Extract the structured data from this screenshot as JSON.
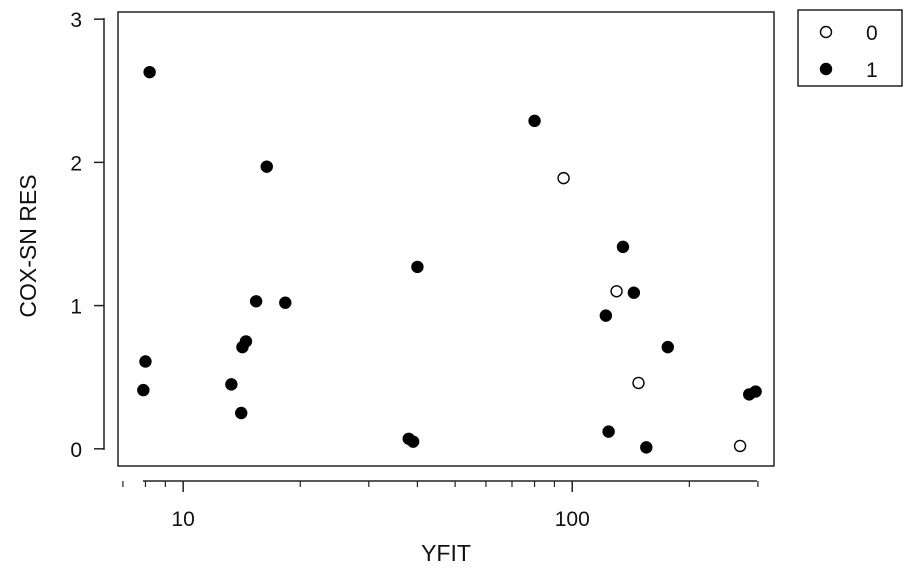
{
  "chart_data": {
    "type": "scatter",
    "xlabel": "YFIT",
    "ylabel": "COX-SN RES",
    "x_scale": "log",
    "xlim": [
      6.8,
      330
    ],
    "ylim": [
      -0.12,
      3.05
    ],
    "x_major_ticks": [
      10,
      100
    ],
    "x_major_tick_labels": [
      "10",
      "100"
    ],
    "x_minor_ticks": [
      7,
      8,
      9,
      20,
      30,
      40,
      50,
      60,
      70,
      80,
      90,
      200,
      300
    ],
    "y_ticks": [
      0,
      1,
      2,
      3
    ],
    "y_tick_labels": [
      "0",
      "1",
      "2",
      "3"
    ],
    "grid": false,
    "legend_position": "outside-right-top",
    "series": [
      {
        "name": "0",
        "marker": "open-circle",
        "color": "#000000",
        "points": [
          {
            "x": 95,
            "y": 1.89
          },
          {
            "x": 130,
            "y": 1.1
          },
          {
            "x": 148,
            "y": 0.46
          },
          {
            "x": 270,
            "y": 0.02
          }
        ]
      },
      {
        "name": "1",
        "marker": "filled-circle",
        "color": "#000000",
        "points": [
          {
            "x": 8.2,
            "y": 2.63
          },
          {
            "x": 8.0,
            "y": 0.61
          },
          {
            "x": 7.9,
            "y": 0.41
          },
          {
            "x": 13.3,
            "y": 0.45
          },
          {
            "x": 14.1,
            "y": 0.25
          },
          {
            "x": 14.2,
            "y": 0.71
          },
          {
            "x": 14.5,
            "y": 0.75
          },
          {
            "x": 15.4,
            "y": 1.03
          },
          {
            "x": 16.4,
            "y": 1.97
          },
          {
            "x": 18.3,
            "y": 1.02
          },
          {
            "x": 38,
            "y": 0.07
          },
          {
            "x": 39,
            "y": 0.05
          },
          {
            "x": 40,
            "y": 1.27
          },
          {
            "x": 80,
            "y": 2.29
          },
          {
            "x": 122,
            "y": 0.93
          },
          {
            "x": 124,
            "y": 0.12
          },
          {
            "x": 135,
            "y": 1.41
          },
          {
            "x": 144,
            "y": 1.09
          },
          {
            "x": 155,
            "y": 0.01
          },
          {
            "x": 176,
            "y": 0.71
          },
          {
            "x": 285,
            "y": 0.38
          },
          {
            "x": 296,
            "y": 0.4
          }
        ]
      }
    ]
  }
}
